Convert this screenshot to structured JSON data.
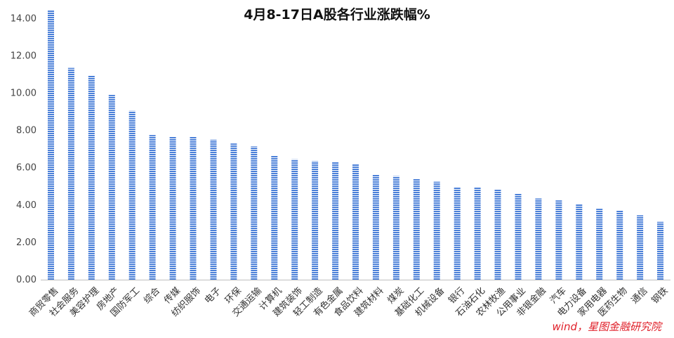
{
  "chart_data": {
    "type": "bar",
    "title": "4月8-17日A股各行业涨跌幅%",
    "source": "wind，星图金融研究院",
    "ylim": [
      0,
      14.5
    ],
    "yticks": [
      "0.00",
      "2.00",
      "4.00",
      "6.00",
      "8.00",
      "10.00",
      "12.00",
      "14.00"
    ],
    "grid": false,
    "bar_color": "#4a7fd8",
    "categories": [
      "商贸零售",
      "社会服务",
      "美容护理",
      "房地产",
      "国防军工",
      "综合",
      "传媒",
      "纺织服饰",
      "电子",
      "环保",
      "交通运输",
      "计算机",
      "建筑装饰",
      "轻工制造",
      "有色金属",
      "食品饮料",
      "建筑材料",
      "煤炭",
      "基础化工",
      "机械设备",
      "银行",
      "石油石化",
      "农林牧渔",
      "公用事业",
      "非银金融",
      "汽车",
      "电力设备",
      "家用电器",
      "医药生物",
      "通信",
      "钢铁"
    ],
    "values": [
      14.45,
      11.35,
      10.95,
      9.9,
      9.05,
      7.75,
      7.65,
      7.65,
      7.5,
      7.3,
      7.15,
      6.65,
      6.45,
      6.35,
      6.3,
      6.2,
      5.65,
      5.55,
      5.4,
      5.25,
      4.95,
      4.95,
      4.85,
      4.6,
      4.35,
      4.25,
      4.05,
      3.8,
      3.7,
      3.45,
      3.1
    ]
  }
}
